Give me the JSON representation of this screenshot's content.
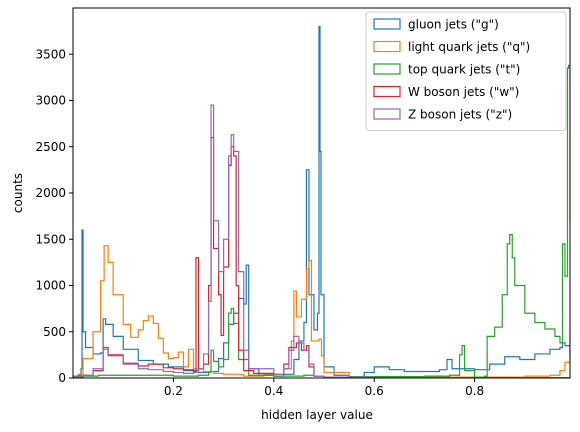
{
  "chart_data": {
    "type": "histogram-step",
    "xlabel": "hidden layer value",
    "ylabel": "counts",
    "xlim": [
      0.0,
      0.99
    ],
    "ylim": [
      0,
      4000
    ],
    "xticks": [
      {
        "value": 0.2,
        "label": "0.2"
      },
      {
        "value": 0.4,
        "label": "0.4"
      },
      {
        "value": 0.6,
        "label": "0.6"
      },
      {
        "value": 0.8,
        "label": "0.8"
      }
    ],
    "yticks": [
      {
        "value": 0,
        "label": "0"
      },
      {
        "value": 500,
        "label": "500"
      },
      {
        "value": 1000,
        "label": "1000"
      },
      {
        "value": 1500,
        "label": "1500"
      },
      {
        "value": 2000,
        "label": "2000"
      },
      {
        "value": 2500,
        "label": "2500"
      },
      {
        "value": 3000,
        "label": "3000"
      },
      {
        "value": 3500,
        "label": "3500"
      }
    ],
    "legend_position": "top-right",
    "grid": false,
    "series": [
      {
        "name": "gluon jets (\"g\")",
        "color": "#1f77b4",
        "points": [
          [
            0.0,
            20
          ],
          [
            0.01,
            30
          ],
          [
            0.016,
            100
          ],
          [
            0.018,
            1600
          ],
          [
            0.02,
            500
          ],
          [
            0.025,
            330
          ],
          [
            0.04,
            260
          ],
          [
            0.055,
            270
          ],
          [
            0.06,
            640
          ],
          [
            0.065,
            580
          ],
          [
            0.08,
            450
          ],
          [
            0.1,
            310
          ],
          [
            0.13,
            190
          ],
          [
            0.16,
            150
          ],
          [
            0.19,
            120
          ],
          [
            0.22,
            80
          ],
          [
            0.25,
            60
          ],
          [
            0.27,
            70
          ],
          [
            0.29,
            210
          ],
          [
            0.3,
            380
          ],
          [
            0.31,
            580
          ],
          [
            0.32,
            700
          ],
          [
            0.33,
            860
          ],
          [
            0.34,
            800
          ],
          [
            0.345,
            1220
          ],
          [
            0.35,
            100
          ],
          [
            0.37,
            30
          ],
          [
            0.4,
            20
          ],
          [
            0.42,
            40
          ],
          [
            0.44,
            200
          ],
          [
            0.45,
            400
          ],
          [
            0.46,
            600
          ],
          [
            0.465,
            2250
          ],
          [
            0.47,
            900
          ],
          [
            0.48,
            520
          ],
          [
            0.487,
            700
          ],
          [
            0.49,
            3800
          ],
          [
            0.492,
            2450
          ],
          [
            0.494,
            900
          ],
          [
            0.5,
            120
          ],
          [
            0.52,
            30
          ],
          [
            0.55,
            15
          ],
          [
            0.58,
            60
          ],
          [
            0.6,
            120
          ],
          [
            0.63,
            90
          ],
          [
            0.66,
            70
          ],
          [
            0.7,
            70
          ],
          [
            0.73,
            90
          ],
          [
            0.745,
            200
          ],
          [
            0.755,
            100
          ],
          [
            0.8,
            90
          ],
          [
            0.83,
            150
          ],
          [
            0.86,
            230
          ],
          [
            0.89,
            200
          ],
          [
            0.92,
            260
          ],
          [
            0.95,
            310
          ],
          [
            0.97,
            330
          ],
          [
            0.975,
            380
          ],
          [
            0.98,
            350
          ],
          [
            0.99,
            240
          ]
        ]
      },
      {
        "name": "light quark jets (\"q\")",
        "color": "#ff7f0e",
        "points": [
          [
            0.0,
            20
          ],
          [
            0.01,
            40
          ],
          [
            0.02,
            210
          ],
          [
            0.04,
            500
          ],
          [
            0.055,
            1050
          ],
          [
            0.062,
            1430
          ],
          [
            0.07,
            1250
          ],
          [
            0.08,
            900
          ],
          [
            0.1,
            580
          ],
          [
            0.115,
            440
          ],
          [
            0.13,
            520
          ],
          [
            0.14,
            620
          ],
          [
            0.15,
            670
          ],
          [
            0.16,
            590
          ],
          [
            0.17,
            430
          ],
          [
            0.18,
            270
          ],
          [
            0.19,
            210
          ],
          [
            0.2,
            220
          ],
          [
            0.21,
            280
          ],
          [
            0.22,
            120
          ],
          [
            0.23,
            310
          ],
          [
            0.24,
            100
          ],
          [
            0.26,
            70
          ],
          [
            0.28,
            50
          ],
          [
            0.3,
            40
          ],
          [
            0.34,
            20
          ],
          [
            0.38,
            40
          ],
          [
            0.42,
            100
          ],
          [
            0.435,
            400
          ],
          [
            0.44,
            940
          ],
          [
            0.445,
            660
          ],
          [
            0.455,
            850
          ],
          [
            0.465,
            1180
          ],
          [
            0.47,
            1270
          ],
          [
            0.475,
            400
          ],
          [
            0.49,
            420
          ],
          [
            0.495,
            240
          ],
          [
            0.5,
            60
          ],
          [
            0.55,
            15
          ],
          [
            0.6,
            15
          ],
          [
            0.7,
            10
          ],
          [
            0.8,
            10
          ],
          [
            0.9,
            20
          ],
          [
            0.95,
            30
          ],
          [
            0.97,
            80
          ],
          [
            0.98,
            170
          ],
          [
            0.99,
            600
          ]
        ]
      },
      {
        "name": "top quark jets (\"t\")",
        "color": "#2ca02c",
        "points": [
          [
            0.0,
            20
          ],
          [
            0.05,
            30
          ],
          [
            0.1,
            30
          ],
          [
            0.15,
            30
          ],
          [
            0.2,
            20
          ],
          [
            0.25,
            30
          ],
          [
            0.27,
            60
          ],
          [
            0.275,
            300
          ],
          [
            0.28,
            180
          ],
          [
            0.29,
            120
          ],
          [
            0.3,
            200
          ],
          [
            0.31,
            700
          ],
          [
            0.315,
            750
          ],
          [
            0.32,
            590
          ],
          [
            0.33,
            200
          ],
          [
            0.35,
            30
          ],
          [
            0.4,
            20
          ],
          [
            0.44,
            20
          ],
          [
            0.46,
            30
          ],
          [
            0.48,
            20
          ],
          [
            0.5,
            10
          ],
          [
            0.55,
            15
          ],
          [
            0.6,
            15
          ],
          [
            0.65,
            15
          ],
          [
            0.7,
            20
          ],
          [
            0.75,
            30
          ],
          [
            0.77,
            250
          ],
          [
            0.775,
            350
          ],
          [
            0.78,
            80
          ],
          [
            0.8,
            10
          ],
          [
            0.82,
            20
          ],
          [
            0.825,
            450
          ],
          [
            0.84,
            550
          ],
          [
            0.855,
            900
          ],
          [
            0.865,
            1450
          ],
          [
            0.87,
            1550
          ],
          [
            0.875,
            1300
          ],
          [
            0.88,
            1000
          ],
          [
            0.9,
            700
          ],
          [
            0.92,
            600
          ],
          [
            0.94,
            530
          ],
          [
            0.96,
            450
          ],
          [
            0.97,
            380
          ],
          [
            0.975,
            1450
          ],
          [
            0.98,
            1100
          ],
          [
            0.985,
            3350
          ],
          [
            0.987,
            3380
          ],
          [
            0.99,
            1700
          ]
        ]
      },
      {
        "name": "W boson jets (\"w\")",
        "color": "#d62728",
        "points": [
          [
            0.0,
            10
          ],
          [
            0.02,
            30
          ],
          [
            0.04,
            80
          ],
          [
            0.06,
            330
          ],
          [
            0.07,
            250
          ],
          [
            0.1,
            160
          ],
          [
            0.13,
            130
          ],
          [
            0.15,
            150
          ],
          [
            0.18,
            110
          ],
          [
            0.2,
            100
          ],
          [
            0.22,
            90
          ],
          [
            0.24,
            70
          ],
          [
            0.245,
            1300
          ],
          [
            0.25,
            100
          ],
          [
            0.26,
            150
          ],
          [
            0.27,
            1000
          ],
          [
            0.275,
            2600
          ],
          [
            0.28,
            1400
          ],
          [
            0.29,
            900
          ],
          [
            0.295,
            460
          ],
          [
            0.3,
            1200
          ],
          [
            0.31,
            2300
          ],
          [
            0.315,
            2500
          ],
          [
            0.32,
            2400
          ],
          [
            0.325,
            1000
          ],
          [
            0.33,
            300
          ],
          [
            0.34,
            80
          ],
          [
            0.36,
            50
          ],
          [
            0.4,
            40
          ],
          [
            0.42,
            150
          ],
          [
            0.43,
            330
          ],
          [
            0.445,
            380
          ],
          [
            0.455,
            300
          ],
          [
            0.465,
            350
          ],
          [
            0.47,
            120
          ],
          [
            0.48,
            20
          ],
          [
            0.5,
            10
          ],
          [
            0.6,
            5
          ],
          [
            0.8,
            5
          ],
          [
            0.99,
            5
          ]
        ]
      },
      {
        "name": "Z boson jets (\"z\")",
        "color": "#9467bd",
        "points": [
          [
            0.0,
            10
          ],
          [
            0.02,
            30
          ],
          [
            0.04,
            100
          ],
          [
            0.06,
            310
          ],
          [
            0.07,
            240
          ],
          [
            0.1,
            150
          ],
          [
            0.13,
            100
          ],
          [
            0.15,
            90
          ],
          [
            0.18,
            70
          ],
          [
            0.2,
            60
          ],
          [
            0.22,
            50
          ],
          [
            0.24,
            60
          ],
          [
            0.25,
            100
          ],
          [
            0.26,
            260
          ],
          [
            0.27,
            830
          ],
          [
            0.275,
            2950
          ],
          [
            0.28,
            1700
          ],
          [
            0.29,
            1150
          ],
          [
            0.3,
            1500
          ],
          [
            0.31,
            2400
          ],
          [
            0.315,
            2630
          ],
          [
            0.32,
            2450
          ],
          [
            0.33,
            1150
          ],
          [
            0.34,
            300
          ],
          [
            0.35,
            100
          ],
          [
            0.4,
            40
          ],
          [
            0.42,
            100
          ],
          [
            0.43,
            300
          ],
          [
            0.44,
            450
          ],
          [
            0.45,
            380
          ],
          [
            0.46,
            300
          ],
          [
            0.47,
            150
          ],
          [
            0.48,
            20
          ],
          [
            0.5,
            10
          ],
          [
            0.6,
            5
          ],
          [
            0.8,
            5
          ],
          [
            0.99,
            5
          ]
        ]
      }
    ]
  }
}
